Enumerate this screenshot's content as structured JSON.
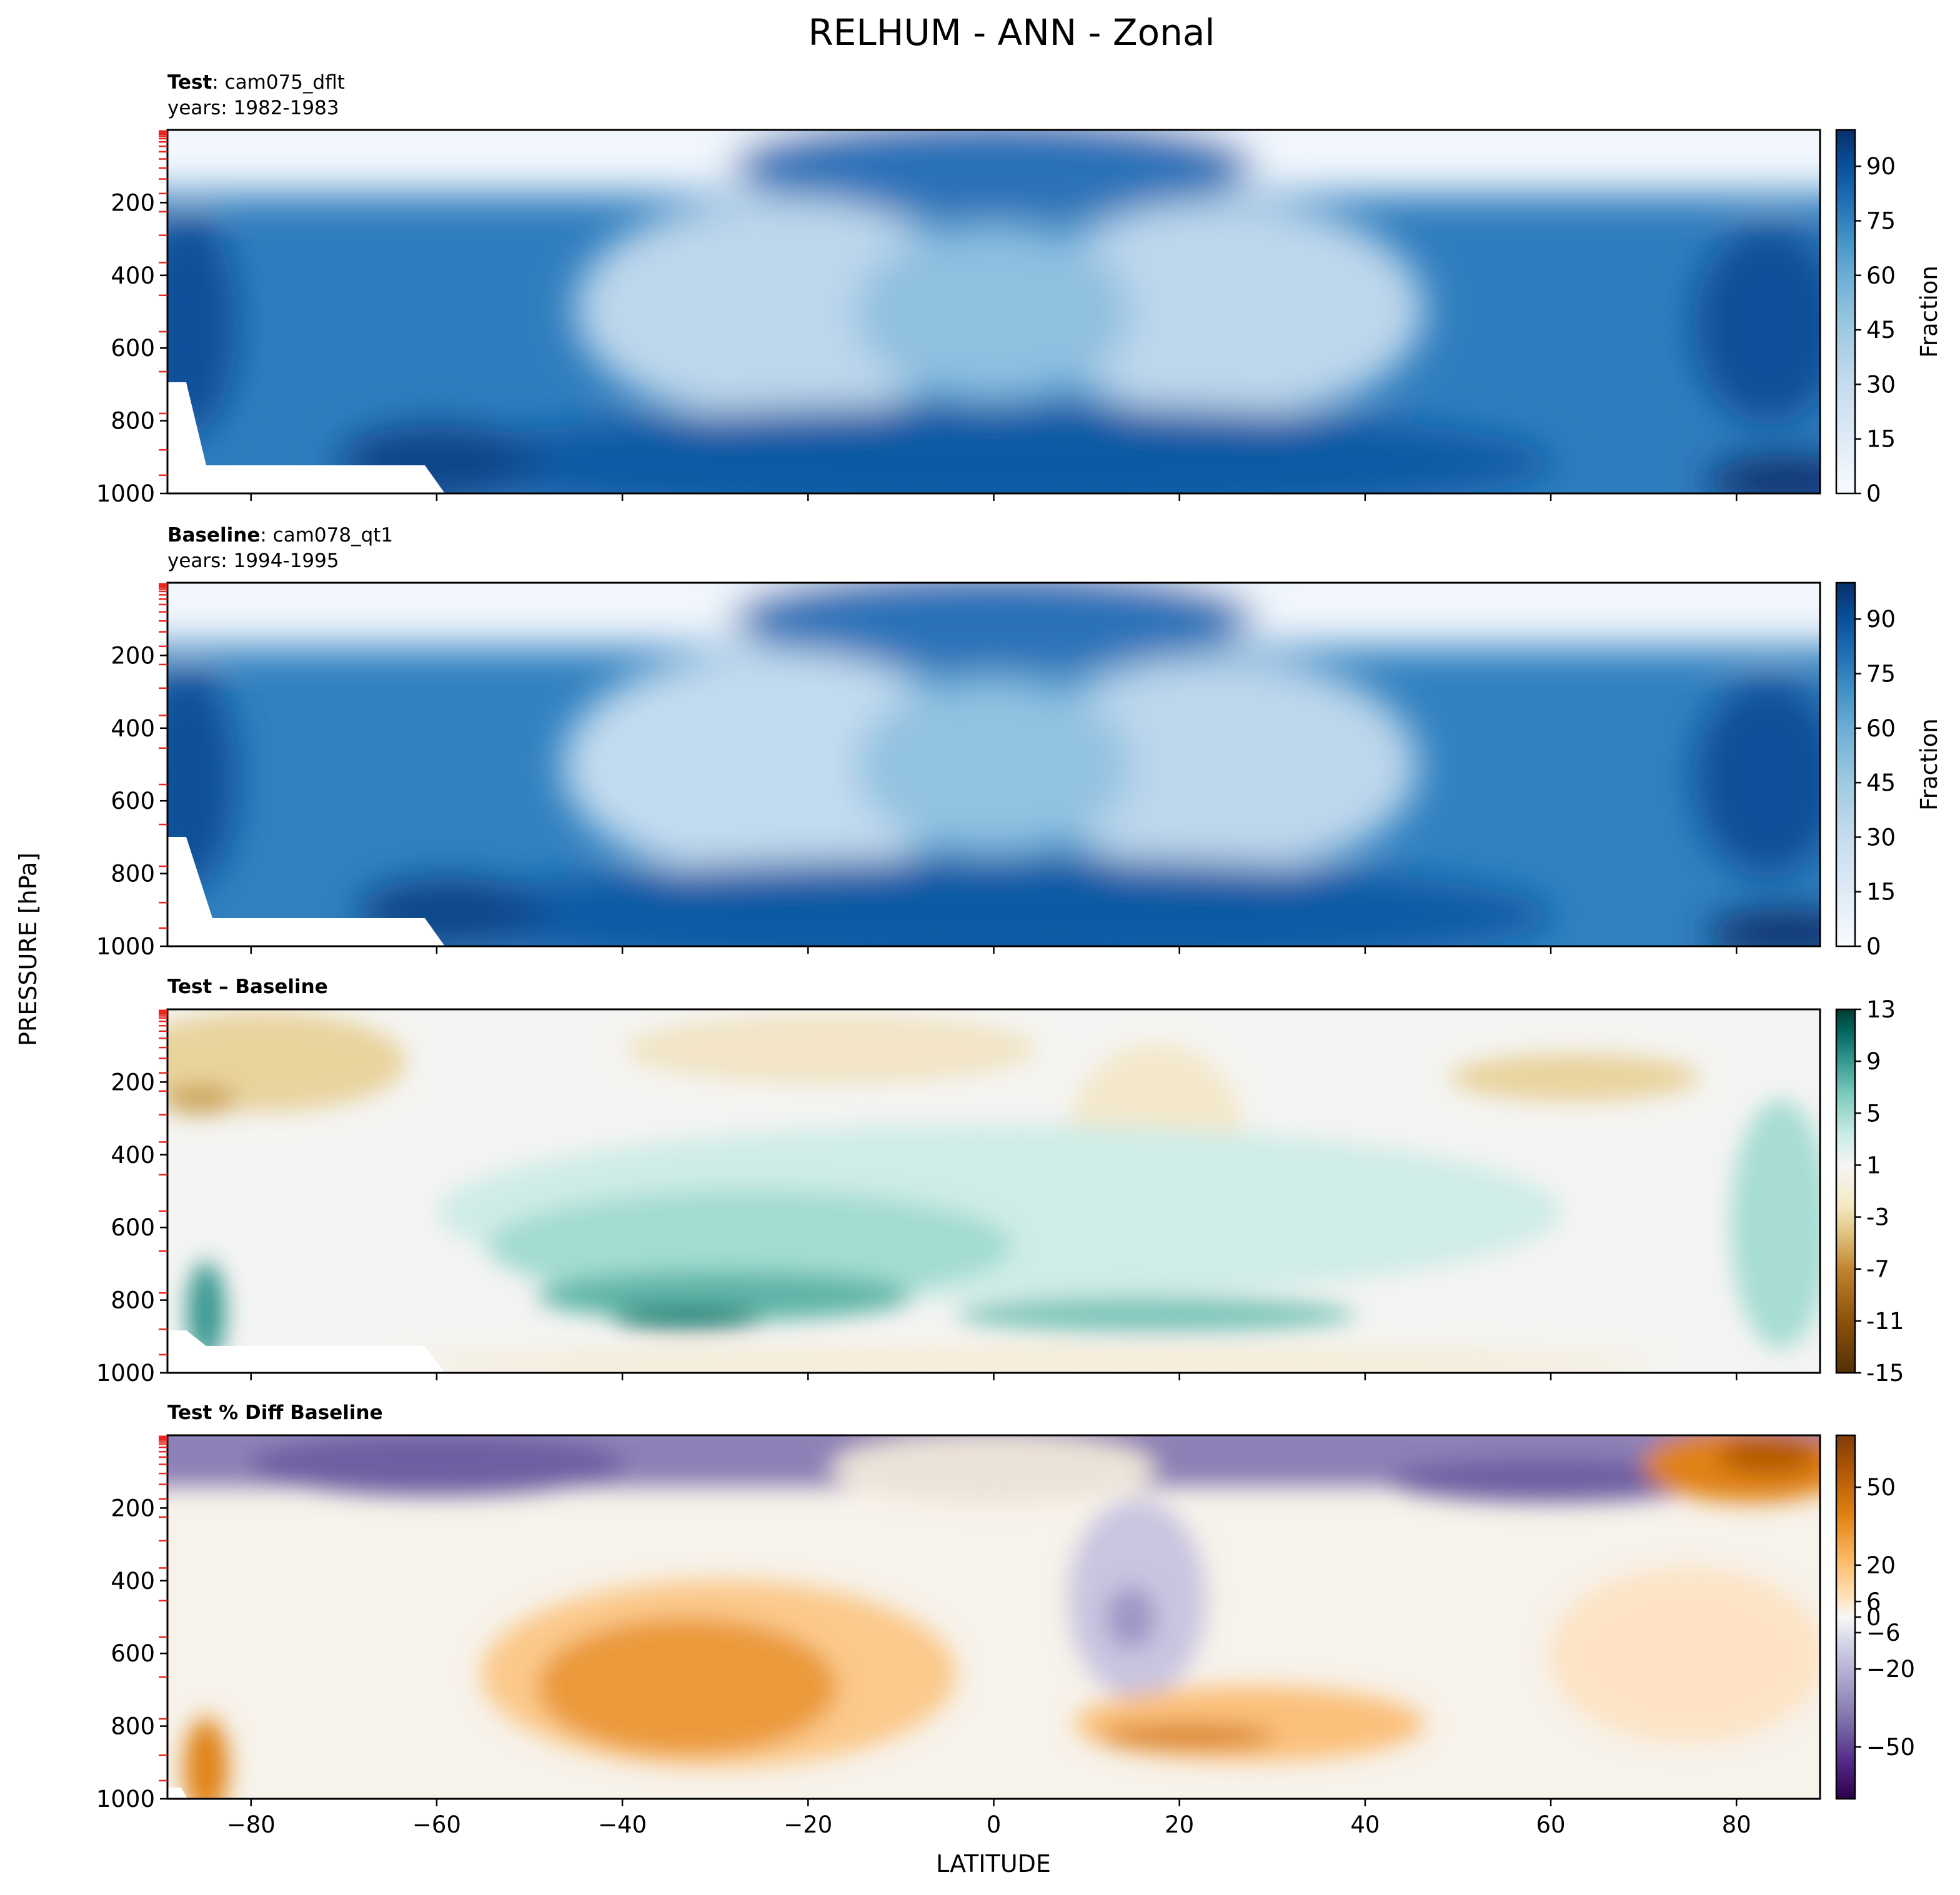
{
  "figure": {
    "suptitle": "RELHUM - ANN - Zonal",
    "shared_xlabel": "LATITUDE",
    "shared_ylabel": "PRESSURE [hPa]"
  },
  "chart_data": [
    {
      "type": "heatmap",
      "panel": "test",
      "title_bold": "Test",
      "title_rest": ": cam075_dflt",
      "subtitle": "years: 1982-1983",
      "x_ticks": [
        -80,
        -60,
        -40,
        -20,
        0,
        20,
        40,
        60,
        80
      ],
      "x_tick_labels": [],
      "xlim": [
        -89,
        89
      ],
      "y_ticks": [
        200,
        400,
        600,
        800,
        1000
      ],
      "ylim": [
        1000,
        0
      ],
      "colorbar_label": "Fraction",
      "colorbar_ticks": [
        0,
        15,
        30,
        45,
        60,
        75,
        90
      ],
      "colorbar_range": [
        0,
        100
      ],
      "colormap": [
        "#f7fbff",
        "#deebf7",
        "#c6dbef",
        "#9ecae1",
        "#6baed6",
        "#4292c6",
        "#2171b5",
        "#08519c",
        "#08306b"
      ]
    },
    {
      "type": "heatmap",
      "panel": "baseline",
      "title_bold": "Baseline",
      "title_rest": ": cam078_qt1",
      "subtitle": "years: 1994-1995",
      "x_ticks": [
        -80,
        -60,
        -40,
        -20,
        0,
        20,
        40,
        60,
        80
      ],
      "x_tick_labels": [],
      "xlim": [
        -89,
        89
      ],
      "y_ticks": [
        200,
        400,
        600,
        800,
        1000
      ],
      "ylim": [
        1000,
        0
      ],
      "colorbar_label": "Fraction",
      "colorbar_ticks": [
        0,
        15,
        30,
        45,
        60,
        75,
        90
      ],
      "colorbar_range": [
        0,
        100
      ],
      "colormap": [
        "#f7fbff",
        "#deebf7",
        "#c6dbef",
        "#9ecae1",
        "#6baed6",
        "#4292c6",
        "#2171b5",
        "#08519c",
        "#08306b"
      ]
    },
    {
      "type": "heatmap",
      "panel": "diff",
      "title_bold": "Test – Baseline",
      "title_rest": "",
      "subtitle": "",
      "x_ticks": [
        -80,
        -60,
        -40,
        -20,
        0,
        20,
        40,
        60,
        80
      ],
      "x_tick_labels": [],
      "xlim": [
        -89,
        89
      ],
      "y_ticks": [
        200,
        400,
        600,
        800,
        1000
      ],
      "ylim": [
        1000,
        0
      ],
      "colorbar_label": "",
      "colorbar_ticks": [
        13,
        9,
        5,
        1,
        -3,
        -7,
        -11,
        -15
      ],
      "colorbar_range": [
        -15,
        13
      ],
      "colormap": [
        "#543005",
        "#8c510a",
        "#bf812d",
        "#dfc27d",
        "#f6e8c3",
        "#f5f5f5",
        "#c7eae5",
        "#80cdc1",
        "#35978f",
        "#01665e",
        "#003c30"
      ]
    },
    {
      "type": "heatmap",
      "panel": "pctdiff",
      "title_bold": "Test % Diff Baseline",
      "title_rest": "",
      "subtitle": "",
      "x_ticks": [
        -80,
        -60,
        -40,
        -20,
        0,
        20,
        40,
        60,
        80
      ],
      "x_tick_labels": [
        "−80",
        "−60",
        "−40",
        "−20",
        "0",
        "20",
        "40",
        "60",
        "80"
      ],
      "xlim": [
        -89,
        89
      ],
      "y_ticks": [
        200,
        400,
        600,
        800,
        1000
      ],
      "ylim": [
        1000,
        0
      ],
      "colorbar_label": "",
      "colorbar_ticks": [
        50,
        20,
        6,
        0,
        -6,
        -20,
        -50
      ],
      "colorbar_tick_labels": [
        "50",
        "20",
        "6",
        "0",
        "−6",
        "−20",
        "−50"
      ],
      "colorbar_range": [
        -70,
        70
      ],
      "colormap": [
        "#2d004b",
        "#542788",
        "#8073ac",
        "#b2abd2",
        "#d8daeb",
        "#f7f7f7",
        "#fee0b6",
        "#fdb863",
        "#e08214",
        "#b35806",
        "#7f3b08"
      ]
    }
  ]
}
